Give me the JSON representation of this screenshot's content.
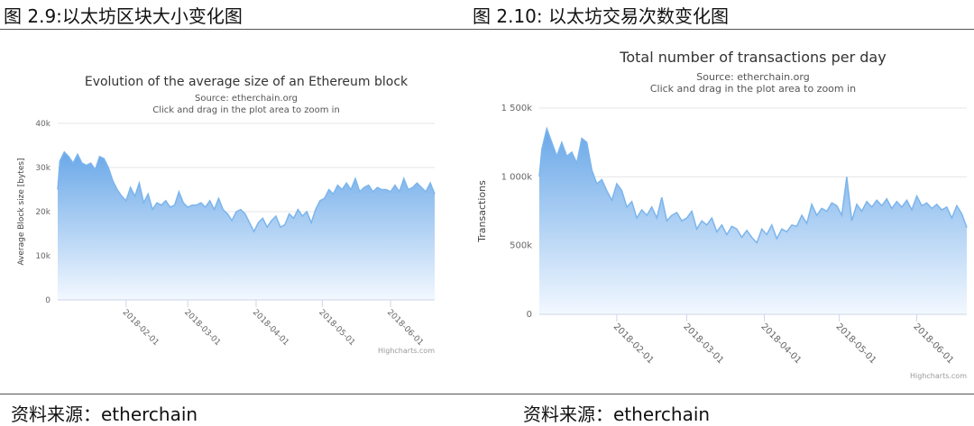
{
  "captions": {
    "left": "图 2.9:以太坊区块大小变化图",
    "right": "图 2.10:  以太坊交易次数变化图"
  },
  "sources": {
    "left": "资料来源：etherchain",
    "right": "资料来源：etherchain"
  },
  "colors": {
    "area_top": "#6aa8e8",
    "area_bottom": "#f2f8ff",
    "line": "#7cb5ec",
    "grid": "#e6e6e6"
  },
  "chart_data": [
    {
      "type": "area",
      "title": "Evolution of the average size of an Ethereum block",
      "subtitle_source": "Source: etherchain.org",
      "subtitle_hint": "Click and drag in the plot area to zoom in",
      "xlabel": "",
      "ylabel": "Average Block size [bytes]",
      "ylim": [
        0,
        40000
      ],
      "y_ticks": [
        0,
        10000,
        20000,
        30000,
        40000
      ],
      "y_tick_labels": [
        "0",
        "10k",
        "20k",
        "30k",
        "40k"
      ],
      "xlim": [
        "2018-01-01",
        "2018-06-21"
      ],
      "x_ticks": [
        "2018-02-01",
        "2018-03-01",
        "2018-04-01",
        "2018-05-01",
        "2018-06-01"
      ],
      "credit": "Highcharts.com",
      "x": [
        "2018-01-01",
        "2018-01-02",
        "2018-01-04",
        "2018-01-06",
        "2018-01-08",
        "2018-01-10",
        "2018-01-12",
        "2018-01-14",
        "2018-01-16",
        "2018-01-18",
        "2018-01-20",
        "2018-01-22",
        "2018-01-24",
        "2018-01-26",
        "2018-01-28",
        "2018-01-30",
        "2018-02-01",
        "2018-02-03",
        "2018-02-05",
        "2018-02-07",
        "2018-02-09",
        "2018-02-11",
        "2018-02-13",
        "2018-02-15",
        "2018-02-17",
        "2018-02-19",
        "2018-02-21",
        "2018-02-23",
        "2018-02-25",
        "2018-02-27",
        "2018-03-01",
        "2018-03-03",
        "2018-03-05",
        "2018-03-07",
        "2018-03-09",
        "2018-03-11",
        "2018-03-13",
        "2018-03-15",
        "2018-03-17",
        "2018-03-19",
        "2018-03-21",
        "2018-03-23",
        "2018-03-25",
        "2018-03-27",
        "2018-03-29",
        "2018-03-31",
        "2018-04-02",
        "2018-04-04",
        "2018-04-06",
        "2018-04-08",
        "2018-04-10",
        "2018-04-12",
        "2018-04-14",
        "2018-04-16",
        "2018-04-18",
        "2018-04-20",
        "2018-04-22",
        "2018-04-24",
        "2018-04-26",
        "2018-04-28",
        "2018-04-30",
        "2018-05-02",
        "2018-05-04",
        "2018-05-06",
        "2018-05-08",
        "2018-05-10",
        "2018-05-12",
        "2018-05-14",
        "2018-05-16",
        "2018-05-18",
        "2018-05-20",
        "2018-05-22",
        "2018-05-24",
        "2018-05-26",
        "2018-05-28",
        "2018-05-30",
        "2018-06-01",
        "2018-06-03",
        "2018-06-05",
        "2018-06-07",
        "2018-06-09",
        "2018-06-11",
        "2018-06-13",
        "2018-06-15",
        "2018-06-17",
        "2018-06-19",
        "2018-06-21"
      ],
      "values": [
        25000,
        31500,
        33500,
        32500,
        31000,
        33000,
        31000,
        30500,
        31000,
        29500,
        32500,
        32000,
        30000,
        27000,
        25000,
        23500,
        22500,
        25500,
        23500,
        26500,
        22000,
        24000,
        20500,
        22000,
        21500,
        22500,
        21000,
        21500,
        24500,
        22000,
        21000,
        21500,
        21500,
        22000,
        21000,
        22500,
        20500,
        23000,
        20500,
        19500,
        18000,
        20000,
        20500,
        19500,
        17500,
        15500,
        17500,
        18500,
        16500,
        18000,
        19000,
        16500,
        17000,
        19500,
        18500,
        20500,
        19000,
        20000,
        17500,
        20500,
        22500,
        23000,
        25000,
        24000,
        26000,
        25000,
        26500,
        25000,
        27500,
        24500,
        25500,
        26000,
        24500,
        25500,
        25000,
        25000,
        24500,
        26000,
        24500,
        27500,
        25000,
        25500,
        26500,
        25500,
        24500,
        26500,
        24000
      ]
    },
    {
      "type": "area",
      "title": "Total number of transactions per day",
      "subtitle_source": "Source: etherchain.org",
      "subtitle_hint": "Click and drag in the plot area to zoom in",
      "xlabel": "",
      "ylabel": "Transactions",
      "ylim": [
        0,
        1500000
      ],
      "y_ticks": [
        0,
        500000,
        1000000,
        1500000
      ],
      "y_tick_labels": [
        "0",
        "500k",
        "1 000k",
        "1 500k"
      ],
      "xlim": [
        "2018-01-01",
        "2018-06-21"
      ],
      "x_ticks": [
        "2018-02-01",
        "2018-03-01",
        "2018-04-01",
        "2018-05-01",
        "2018-06-01"
      ],
      "credit": "Highcharts.com",
      "x": [
        "2018-01-01",
        "2018-01-02",
        "2018-01-04",
        "2018-01-06",
        "2018-01-08",
        "2018-01-10",
        "2018-01-12",
        "2018-01-14",
        "2018-01-16",
        "2018-01-18",
        "2018-01-20",
        "2018-01-22",
        "2018-01-24",
        "2018-01-26",
        "2018-01-28",
        "2018-01-30",
        "2018-02-01",
        "2018-02-03",
        "2018-02-05",
        "2018-02-07",
        "2018-02-09",
        "2018-02-11",
        "2018-02-13",
        "2018-02-15",
        "2018-02-17",
        "2018-02-19",
        "2018-02-21",
        "2018-02-23",
        "2018-02-25",
        "2018-02-27",
        "2018-03-01",
        "2018-03-03",
        "2018-03-05",
        "2018-03-07",
        "2018-03-09",
        "2018-03-11",
        "2018-03-13",
        "2018-03-15",
        "2018-03-17",
        "2018-03-19",
        "2018-03-21",
        "2018-03-23",
        "2018-03-25",
        "2018-03-27",
        "2018-03-29",
        "2018-03-31",
        "2018-04-02",
        "2018-04-04",
        "2018-04-06",
        "2018-04-08",
        "2018-04-10",
        "2018-04-12",
        "2018-04-14",
        "2018-04-16",
        "2018-04-18",
        "2018-04-20",
        "2018-04-22",
        "2018-04-24",
        "2018-04-26",
        "2018-04-28",
        "2018-04-30",
        "2018-05-02",
        "2018-05-04",
        "2018-05-06",
        "2018-05-08",
        "2018-05-10",
        "2018-05-12",
        "2018-05-14",
        "2018-05-16",
        "2018-05-18",
        "2018-05-20",
        "2018-05-22",
        "2018-05-24",
        "2018-05-26",
        "2018-05-28",
        "2018-05-30",
        "2018-06-01",
        "2018-06-03",
        "2018-06-05",
        "2018-06-07",
        "2018-06-09",
        "2018-06-11",
        "2018-06-13",
        "2018-06-15",
        "2018-06-17",
        "2018-06-19",
        "2018-06-21"
      ],
      "values": [
        1000000,
        1200000,
        1350000,
        1250000,
        1150000,
        1250000,
        1150000,
        1180000,
        1100000,
        1280000,
        1250000,
        1050000,
        950000,
        980000,
        900000,
        830000,
        950000,
        900000,
        780000,
        820000,
        700000,
        760000,
        720000,
        780000,
        700000,
        850000,
        680000,
        720000,
        740000,
        680000,
        700000,
        750000,
        620000,
        680000,
        650000,
        700000,
        600000,
        650000,
        580000,
        640000,
        620000,
        560000,
        610000,
        560000,
        520000,
        620000,
        580000,
        650000,
        550000,
        620000,
        600000,
        650000,
        640000,
        720000,
        660000,
        800000,
        720000,
        770000,
        750000,
        810000,
        790000,
        720000,
        1000000,
        680000,
        800000,
        750000,
        820000,
        780000,
        830000,
        790000,
        840000,
        770000,
        820000,
        780000,
        830000,
        760000,
        860000,
        790000,
        810000,
        770000,
        800000,
        760000,
        780000,
        700000,
        790000,
        730000,
        630000
      ]
    }
  ]
}
